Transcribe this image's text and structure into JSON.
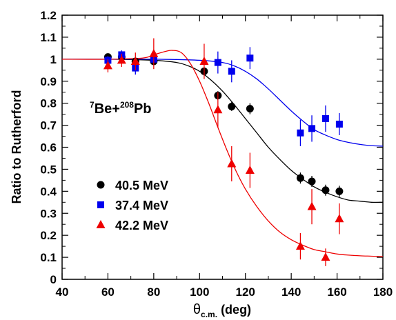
{
  "chart_data": {
    "type": "scatter",
    "xlabel_main": "θ",
    "xlabel_sub": "c.m.",
    "xlabel_unit": " (deg)",
    "ylabel": "Ratio to Rutherford",
    "xlim": [
      40,
      180
    ],
    "ylim": [
      0,
      1.2
    ],
    "x_ticks": [
      40,
      60,
      80,
      100,
      120,
      140,
      160,
      180
    ],
    "x_tick_labels": [
      "40",
      "60",
      "80",
      "100",
      "120",
      "140",
      "160",
      "180"
    ],
    "y_ticks": [
      0,
      0.1,
      0.2,
      0.3,
      0.4,
      0.5,
      0.6,
      0.7,
      0.8,
      0.9,
      1,
      1.1,
      1.2
    ],
    "y_tick_labels": [
      "0",
      "0.1",
      "0.2",
      "0.3",
      "0.4",
      "0.5",
      "0.6",
      "0.7",
      "0.8",
      "0.9",
      "1",
      "1.1",
      "1.2"
    ],
    "grid": false,
    "legend_position": "lower-left",
    "annotation": {
      "mass1": "7",
      "elem1": "Be+",
      "mass2": "208",
      "elem2": "Pb"
    },
    "series": [
      {
        "name": "40.5 MeV",
        "marker": "circle",
        "color": "#000000",
        "x": [
          60,
          66,
          72,
          80,
          102,
          108,
          114,
          122,
          144,
          149,
          155,
          161
        ],
        "y": [
          1.01,
          1.01,
          0.99,
          0.99,
          0.945,
          0.835,
          0.785,
          0.775,
          0.46,
          0.445,
          0.405,
          0.4
        ],
        "err": [
          0.015,
          0.015,
          0.015,
          0.015,
          0.02,
          0.02,
          0.02,
          0.025,
          0.025,
          0.025,
          0.025,
          0.025
        ],
        "curve_x": [
          40,
          60,
          80,
          90,
          95,
          100,
          105,
          110,
          115,
          120,
          125,
          130,
          135,
          140,
          145,
          150,
          155,
          160,
          165,
          170,
          175,
          180
        ],
        "curve_y": [
          1.0,
          1.0,
          0.995,
          0.985,
          0.97,
          0.945,
          0.905,
          0.855,
          0.795,
          0.73,
          0.665,
          0.6,
          0.545,
          0.495,
          0.455,
          0.42,
          0.395,
          0.375,
          0.36,
          0.355,
          0.35,
          0.35
        ]
      },
      {
        "name": "37.4 MeV",
        "marker": "square",
        "color": "#0000ee",
        "x": [
          60,
          66,
          72,
          80,
          108,
          114,
          122,
          144,
          149,
          155,
          161
        ],
        "y": [
          0.995,
          1.02,
          0.96,
          1.0,
          0.985,
          0.945,
          1.005,
          0.665,
          0.685,
          0.73,
          0.705
        ],
        "err": [
          0.02,
          0.02,
          0.03,
          0.02,
          0.05,
          0.05,
          0.05,
          0.06,
          0.06,
          0.06,
          0.05
        ],
        "curve_x": [
          40,
          60,
          80,
          100,
          110,
          115,
          120,
          125,
          130,
          135,
          140,
          145,
          150,
          155,
          160,
          165,
          170,
          175,
          180
        ],
        "curve_y": [
          1.0,
          1.0,
          1.0,
          0.995,
          0.985,
          0.97,
          0.945,
          0.91,
          0.865,
          0.815,
          0.765,
          0.72,
          0.68,
          0.655,
          0.635,
          0.622,
          0.613,
          0.607,
          0.605
        ]
      },
      {
        "name": "42.2 MeV",
        "marker": "triangle",
        "color": "#ee0000",
        "x": [
          60,
          66,
          72,
          80,
          102,
          108,
          114,
          122,
          144,
          149,
          155,
          161
        ],
        "y": [
          0.97,
          0.995,
          0.99,
          1.025,
          0.99,
          0.77,
          0.525,
          0.495,
          0.15,
          0.33,
          0.1,
          0.275
        ],
        "err": [
          0.03,
          0.03,
          0.04,
          0.07,
          0.08,
          0.08,
          0.08,
          0.08,
          0.06,
          0.08,
          0.04,
          0.07
        ],
        "curve_x": [
          40,
          60,
          75,
          80,
          85,
          88,
          92,
          96,
          100,
          104,
          108,
          112,
          116,
          120,
          125,
          130,
          135,
          140,
          145,
          150,
          155,
          160,
          165,
          170,
          175,
          180
        ],
        "curve_y": [
          1.0,
          1.0,
          1.005,
          1.02,
          1.035,
          1.04,
          1.03,
          0.98,
          0.9,
          0.8,
          0.69,
          0.585,
          0.49,
          0.41,
          0.33,
          0.265,
          0.215,
          0.18,
          0.155,
          0.135,
          0.125,
          0.115,
          0.11,
          0.107,
          0.105,
          0.103
        ]
      }
    ]
  }
}
